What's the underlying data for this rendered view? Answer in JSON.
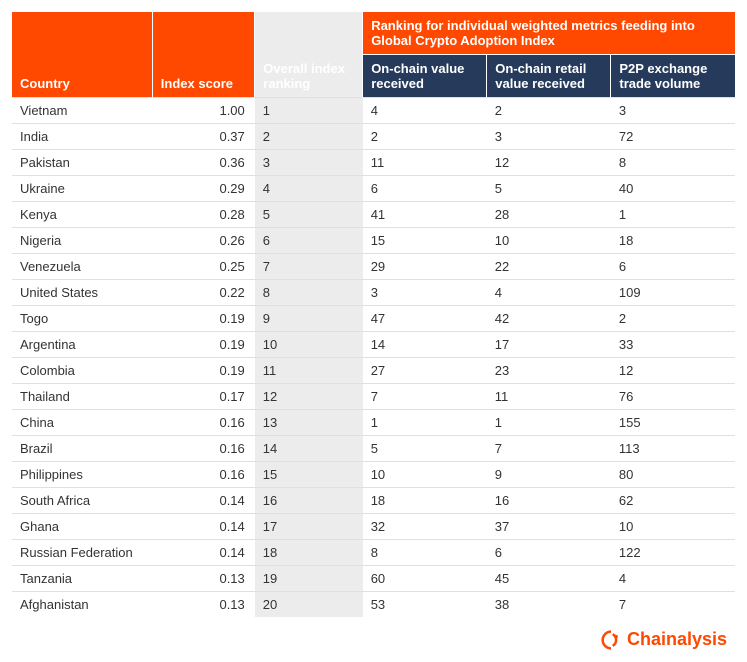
{
  "table": {
    "headers": {
      "country": "Country",
      "index_score": "Index score",
      "overall_ranking": "Overall index ranking",
      "metrics_group": "Ranking for individual weighted metrics feeding into Global Crypto Adoption Index",
      "on_chain_value": "On-chain value received",
      "on_chain_retail": "On-chain retail value received",
      "p2p_exchange": "P2P exchange trade volume"
    },
    "rows": [
      {
        "country": "Vietnam",
        "score": "1.00",
        "rank": "1",
        "onchain": "4",
        "retail": "2",
        "p2p": "3"
      },
      {
        "country": "India",
        "score": "0.37",
        "rank": "2",
        "onchain": "2",
        "retail": "3",
        "p2p": "72"
      },
      {
        "country": "Pakistan",
        "score": "0.36",
        "rank": "3",
        "onchain": "11",
        "retail": "12",
        "p2p": "8"
      },
      {
        "country": "Ukraine",
        "score": "0.29",
        "rank": "4",
        "onchain": "6",
        "retail": "5",
        "p2p": "40"
      },
      {
        "country": "Kenya",
        "score": "0.28",
        "rank": "5",
        "onchain": "41",
        "retail": "28",
        "p2p": "1"
      },
      {
        "country": "Nigeria",
        "score": "0.26",
        "rank": "6",
        "onchain": "15",
        "retail": "10",
        "p2p": "18"
      },
      {
        "country": "Venezuela",
        "score": "0.25",
        "rank": "7",
        "onchain": "29",
        "retail": "22",
        "p2p": "6"
      },
      {
        "country": "United States",
        "score": "0.22",
        "rank": "8",
        "onchain": "3",
        "retail": "4",
        "p2p": "109"
      },
      {
        "country": "Togo",
        "score": "0.19",
        "rank": "9",
        "onchain": "47",
        "retail": "42",
        "p2p": "2"
      },
      {
        "country": "Argentina",
        "score": "0.19",
        "rank": "10",
        "onchain": "14",
        "retail": "17",
        "p2p": "33"
      },
      {
        "country": "Colombia",
        "score": "0.19",
        "rank": "11",
        "onchain": "27",
        "retail": "23",
        "p2p": "12"
      },
      {
        "country": "Thailand",
        "score": "0.17",
        "rank": "12",
        "onchain": "7",
        "retail": "11",
        "p2p": "76"
      },
      {
        "country": "China",
        "score": "0.16",
        "rank": "13",
        "onchain": "1",
        "retail": "1",
        "p2p": "155"
      },
      {
        "country": "Brazil",
        "score": "0.16",
        "rank": "14",
        "onchain": "5",
        "retail": "7",
        "p2p": "113"
      },
      {
        "country": "Philippines",
        "score": "0.16",
        "rank": "15",
        "onchain": "10",
        "retail": "9",
        "p2p": "80"
      },
      {
        "country": "South Africa",
        "score": "0.14",
        "rank": "16",
        "onchain": "18",
        "retail": "16",
        "p2p": "62"
      },
      {
        "country": "Ghana",
        "score": "0.14",
        "rank": "17",
        "onchain": "32",
        "retail": "37",
        "p2p": "10"
      },
      {
        "country": "Russian Federation",
        "score": "0.14",
        "rank": "18",
        "onchain": "8",
        "retail": "6",
        "p2p": "122"
      },
      {
        "country": "Tanzania",
        "score": "0.13",
        "rank": "19",
        "onchain": "60",
        "retail": "45",
        "p2p": "4"
      },
      {
        "country": "Afghanistan",
        "score": "0.13",
        "rank": "20",
        "onchain": "53",
        "retail": "38",
        "p2p": "7"
      }
    ]
  },
  "brand": {
    "name": "Chainalysis",
    "color": "#ff4800"
  },
  "colors": {
    "header_bg": "#ff4800",
    "subheader_bg": "#263a5c",
    "rank_col_bg": "#ececec",
    "border": "#e0e0e0",
    "text": "#333333"
  }
}
